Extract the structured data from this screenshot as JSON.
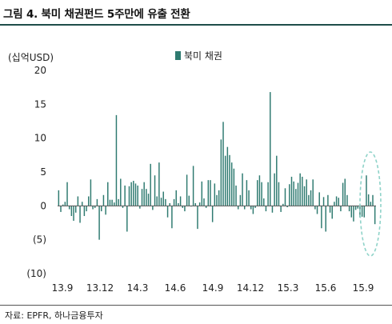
{
  "figure_title": "그림 4. 북미 채권펀드 5주만에 유출 전환",
  "source_note": "자료: EPFR, 하나금융투자",
  "colors": {
    "bar": "#2e7a70",
    "title_rule": "#1f4e4a",
    "highlight_ellipse": "#8fd3c9"
  },
  "chart_data": {
    "type": "bar",
    "ylabel": "(십억USD)",
    "ylim": [
      -10,
      20
    ],
    "yticks": [
      20,
      15,
      10,
      5,
      0,
      -5,
      -10
    ],
    "ytick_labels": [
      "20",
      "15",
      "10",
      "5",
      "0",
      "(5)",
      "(10)"
    ],
    "xtick_labels": [
      "13.9",
      "13.12",
      "14.3",
      "14.6",
      "14.9",
      "14.12",
      "15.3",
      "15.6",
      "15.9"
    ],
    "grid": false,
    "legend_position": "top-center",
    "series": [
      {
        "name": "북미 채권",
        "values": [
          2.3,
          -0.9,
          0.2,
          0.6,
          3.5,
          -0.5,
          -1.5,
          -2.2,
          -1.0,
          1.4,
          -2.5,
          0.6,
          -1.5,
          -0.8,
          1.4,
          3.9,
          -0.5,
          -0.3,
          1.0,
          -5.0,
          -0.8,
          1.6,
          -1.3,
          3.5,
          0.9,
          0.9,
          0.5,
          13.4,
          1.0,
          4.0,
          -0.3,
          3.0,
          -3.8,
          2.9,
          3.5,
          3.7,
          3.3,
          3.0,
          -0.4,
          2.5,
          3.5,
          2.5,
          1.8,
          6.2,
          -0.6,
          4.5,
          1.4,
          6.4,
          1.2,
          2.1,
          1.0,
          -1.7,
          0.4,
          -3.3,
          1.0,
          2.3,
          0.4,
          1.4,
          -0.3,
          -0.8,
          4.6,
          1.5,
          -0.1,
          5.9,
          0.4,
          -3.4,
          0.5,
          3.6,
          1.1,
          -0.3,
          3.8,
          3.8,
          -2.4,
          3.3,
          1.6,
          2.3,
          9.8,
          12.4,
          7.4,
          8.7,
          7.5,
          6.4,
          5.5,
          3.0,
          -0.5,
          1.6,
          4.8,
          -0.5,
          3.8,
          2.3,
          -0.5,
          -1.2,
          -0.3,
          3.8,
          4.5,
          3.5,
          1.1,
          -0.8,
          3.5,
          16.8,
          -1.0,
          4.8,
          7.4,
          3.5,
          -0.9,
          0.3,
          2.6,
          -0.2,
          3.2,
          4.3,
          3.6,
          2.5,
          3.4,
          4.8,
          4.3,
          2.9,
          3.9,
          1.6,
          2.3,
          3.9,
          -0.5,
          -1.2,
          2.0,
          -3.3,
          1.3,
          -3.8,
          1.6,
          -1.0,
          -1.9,
          0.6,
          1.4,
          1.2,
          -0.8,
          3.4,
          4.0,
          1.6,
          -0.8,
          -1.7,
          -2.3,
          -0.6,
          -0.4,
          -1.7,
          -1.6,
          -1.7,
          4.5,
          1.7,
          0.6,
          1.6,
          -2.7
        ]
      }
    ]
  }
}
